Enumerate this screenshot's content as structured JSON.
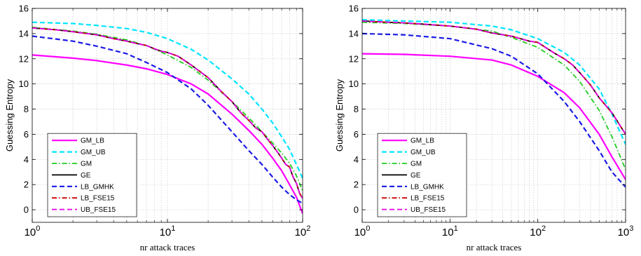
{
  "figure": {
    "background": "#ffffff"
  },
  "chart_data": [
    {
      "type": "line",
      "xscale": "log",
      "xlim": [
        1,
        100
      ],
      "ylim": [
        -1,
        16
      ],
      "grid": true,
      "legend_position": "bottom-left",
      "xlabel": "nr attack traces",
      "ylabel": "Guessing Entropy",
      "xticks": [
        {
          "value": 1,
          "base": "10",
          "exp": "0"
        },
        {
          "value": 10,
          "base": "10",
          "exp": "1"
        },
        {
          "value": 100,
          "base": "10",
          "exp": "2"
        }
      ],
      "yticks": [
        0,
        2,
        4,
        6,
        8,
        10,
        12,
        14,
        16
      ],
      "series": [
        {
          "name": "GM_LB",
          "color": "#ff00ff",
          "style": "solid",
          "width": 2.2,
          "x": [
            1,
            2,
            3,
            5,
            7,
            10,
            15,
            20,
            30,
            40,
            50,
            60,
            70,
            80,
            90,
            100
          ],
          "y": [
            12.3,
            12.05,
            11.85,
            11.5,
            11.2,
            10.75,
            10.0,
            9.2,
            7.6,
            6.3,
            5.2,
            4.1,
            3.1,
            2.0,
            1.0,
            -0.3
          ]
        },
        {
          "name": "GM_UB",
          "color": "#00e5ff",
          "style": "dashed",
          "width": 2.2,
          "x": [
            1,
            2,
            3,
            5,
            7,
            10,
            15,
            20,
            30,
            40,
            50,
            60,
            70,
            80,
            90,
            100
          ],
          "y": [
            14.9,
            14.8,
            14.65,
            14.4,
            14.1,
            13.6,
            12.75,
            11.9,
            10.4,
            9.2,
            8.0,
            6.9,
            5.8,
            4.8,
            3.6,
            2.5
          ]
        },
        {
          "name": "GM",
          "color": "#22cc22",
          "style": "dashdot",
          "width": 1.8,
          "x": [
            1,
            2,
            3,
            5,
            7,
            10,
            15,
            20,
            30,
            40,
            50,
            60,
            70,
            80,
            90,
            100
          ],
          "y": [
            14.5,
            14.2,
            13.95,
            13.5,
            13.05,
            12.3,
            11.3,
            10.3,
            8.6,
            7.3,
            6.2,
            5.3,
            4.5,
            3.7,
            2.7,
            1.5
          ]
        },
        {
          "name": "GE",
          "color": "#000000",
          "style": "solid",
          "width": 1.8,
          "x": [
            1,
            1.5,
            2,
            3,
            4,
            5,
            6,
            7,
            8,
            9,
            10,
            12,
            15,
            20,
            25,
            30,
            35,
            40,
            45,
            50,
            55,
            60,
            65,
            70,
            75,
            80,
            85,
            90,
            95,
            100
          ],
          "y": [
            14.45,
            14.3,
            14.15,
            13.9,
            13.6,
            13.4,
            13.2,
            13.05,
            12.8,
            12.6,
            12.5,
            12.2,
            11.5,
            10.5,
            9.4,
            8.6,
            7.7,
            7.1,
            6.5,
            6.2,
            5.6,
            5.1,
            4.6,
            4.1,
            3.6,
            3.4,
            2.6,
            2.1,
            1.3,
            0.9
          ]
        },
        {
          "name": "LB_GMHK",
          "color": "#1a1ae6",
          "style": "dashed",
          "width": 2.2,
          "x": [
            1,
            2,
            3,
            5,
            7,
            10,
            15,
            20,
            30,
            40,
            50,
            60,
            70,
            80,
            90,
            100
          ],
          "y": [
            13.8,
            13.4,
            13.0,
            12.4,
            11.7,
            10.9,
            9.6,
            8.3,
            6.2,
            4.7,
            3.6,
            2.6,
            1.8,
            1.2,
            0.8,
            0.5
          ]
        },
        {
          "name": "LB_FSE15",
          "color": "#cc0000",
          "style": "dashdot",
          "width": 1.8,
          "x": [
            1,
            1.5,
            2,
            3,
            4,
            5,
            6,
            7,
            8,
            9,
            10,
            12,
            15,
            20,
            25,
            30,
            35,
            40,
            45,
            50,
            55,
            60,
            65,
            70,
            75,
            80,
            85,
            90,
            95,
            100
          ],
          "y": [
            14.45,
            14.3,
            14.15,
            13.9,
            13.6,
            13.4,
            13.2,
            13.05,
            12.8,
            12.6,
            12.5,
            12.2,
            11.5,
            10.5,
            9.4,
            8.6,
            7.7,
            7.1,
            6.5,
            6.2,
            5.6,
            5.1,
            4.6,
            4.1,
            3.6,
            3.4,
            2.6,
            2.1,
            1.3,
            0.9
          ]
        },
        {
          "name": "UB_FSE15",
          "color": "#e600e6",
          "style": "dashed",
          "width": 1.8,
          "x": [
            1,
            1.5,
            2,
            3,
            4,
            5,
            6,
            7,
            8,
            9,
            10,
            12,
            15,
            20,
            25,
            30,
            35,
            40,
            45,
            50,
            55,
            60,
            65,
            70,
            75,
            80,
            85,
            90,
            95,
            100
          ],
          "y": [
            14.45,
            14.3,
            14.15,
            13.9,
            13.6,
            13.4,
            13.2,
            13.05,
            12.8,
            12.6,
            12.5,
            12.2,
            11.5,
            10.5,
            9.4,
            8.6,
            7.7,
            7.1,
            6.5,
            6.2,
            5.6,
            5.1,
            4.6,
            4.1,
            3.6,
            3.4,
            2.6,
            2.1,
            1.3,
            0.9
          ]
        }
      ]
    },
    {
      "type": "line",
      "xscale": "log",
      "xlim": [
        1,
        1000
      ],
      "ylim": [
        -1,
        16
      ],
      "grid": true,
      "legend_position": "bottom-left",
      "xlabel": "nr attack traces",
      "ylabel": "Guessing Entropy",
      "xticks": [
        {
          "value": 1,
          "base": "10",
          "exp": "0"
        },
        {
          "value": 10,
          "base": "10",
          "exp": "1"
        },
        {
          "value": 100,
          "base": "10",
          "exp": "2"
        },
        {
          "value": 1000,
          "base": "10",
          "exp": "3"
        }
      ],
      "yticks": [
        0,
        2,
        4,
        6,
        8,
        10,
        12,
        14,
        16
      ],
      "series": [
        {
          "name": "GM_LB",
          "color": "#ff00ff",
          "style": "solid",
          "width": 2.2,
          "x": [
            1,
            3,
            10,
            30,
            50,
            100,
            200,
            300,
            500,
            700,
            1000
          ],
          "y": [
            12.4,
            12.35,
            12.2,
            11.9,
            11.5,
            10.6,
            9.3,
            8.1,
            6.0,
            4.2,
            2.4
          ]
        },
        {
          "name": "GM_UB",
          "color": "#00e5ff",
          "style": "dashed",
          "width": 2.2,
          "x": [
            1,
            3,
            10,
            30,
            50,
            100,
            200,
            300,
            500,
            700,
            1000
          ],
          "y": [
            15.1,
            15.0,
            14.9,
            14.6,
            14.3,
            13.6,
            12.5,
            11.5,
            9.6,
            7.6,
            5.2
          ]
        },
        {
          "name": "GM",
          "color": "#22cc22",
          "style": "dashdot",
          "width": 1.8,
          "x": [
            1,
            3,
            10,
            30,
            50,
            100,
            200,
            300,
            500,
            700,
            1000
          ],
          "y": [
            14.9,
            14.8,
            14.6,
            14.2,
            13.7,
            12.9,
            11.5,
            10.2,
            7.9,
            5.8,
            3.2
          ]
        },
        {
          "name": "GE",
          "color": "#000000",
          "style": "solid",
          "width": 1.8,
          "x": [
            1,
            2,
            3,
            5,
            10,
            20,
            30,
            50,
            80,
            100,
            150,
            200,
            250,
            300,
            400,
            500,
            700,
            1000
          ],
          "y": [
            15.0,
            14.9,
            14.85,
            14.75,
            14.6,
            14.35,
            14.05,
            13.8,
            13.4,
            13.3,
            12.5,
            12.0,
            11.5,
            10.9,
            9.9,
            8.9,
            7.7,
            6.0
          ]
        },
        {
          "name": "LB_GMHK",
          "color": "#1a1ae6",
          "style": "dashed",
          "width": 2.2,
          "x": [
            1,
            3,
            10,
            30,
            50,
            100,
            200,
            300,
            500,
            700,
            1000
          ],
          "y": [
            14.0,
            13.9,
            13.6,
            12.8,
            12.2,
            10.8,
            8.6,
            7.0,
            4.7,
            3.0,
            1.8
          ]
        },
        {
          "name": "LB_FSE15",
          "color": "#cc0000",
          "style": "dashdot",
          "width": 1.8,
          "x": [
            1,
            2,
            3,
            5,
            10,
            20,
            30,
            50,
            80,
            100,
            150,
            200,
            250,
            300,
            400,
            500,
            700,
            1000
          ],
          "y": [
            15.0,
            14.9,
            14.85,
            14.75,
            14.6,
            14.35,
            14.05,
            13.8,
            13.4,
            13.3,
            12.5,
            12.0,
            11.5,
            10.9,
            9.9,
            8.9,
            7.7,
            6.0
          ]
        },
        {
          "name": "UB_FSE15",
          "color": "#e600e6",
          "style": "dashed",
          "width": 1.8,
          "x": [
            1,
            2,
            3,
            5,
            10,
            20,
            30,
            50,
            80,
            100,
            150,
            200,
            250,
            300,
            400,
            500,
            700,
            1000
          ],
          "y": [
            15.0,
            14.9,
            14.85,
            14.75,
            14.6,
            14.35,
            14.05,
            13.8,
            13.4,
            13.3,
            12.5,
            12.0,
            11.5,
            10.9,
            9.9,
            8.9,
            7.7,
            6.0
          ]
        }
      ]
    }
  ]
}
